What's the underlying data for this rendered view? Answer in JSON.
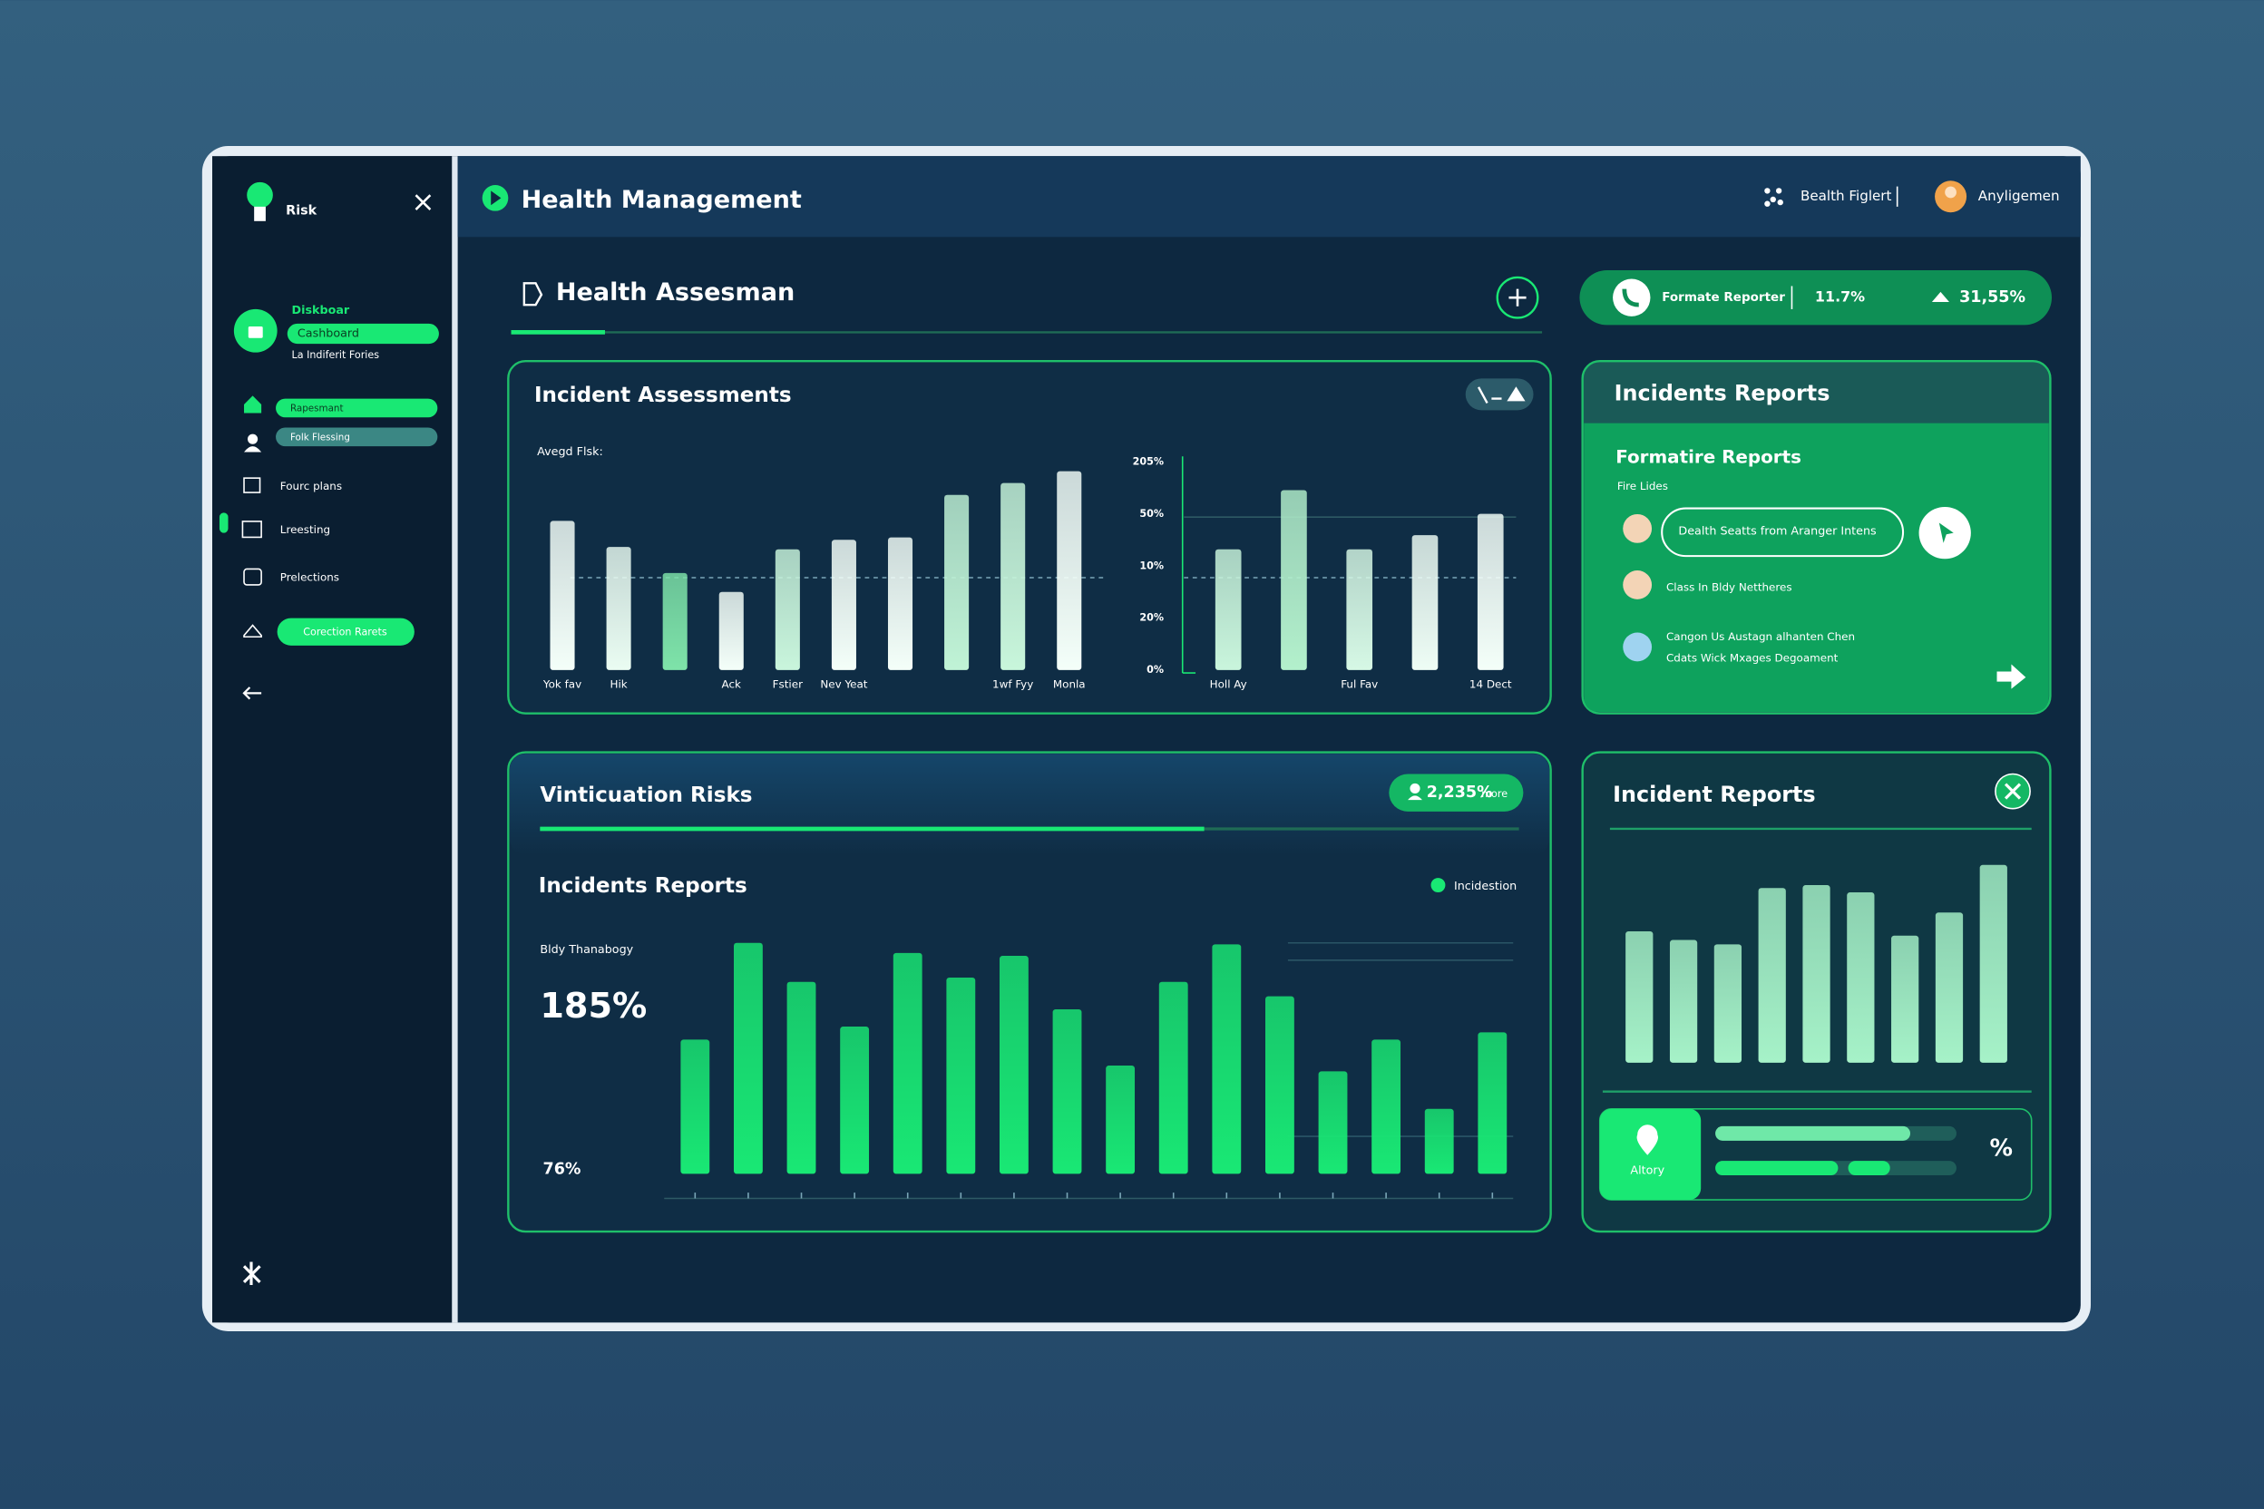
{
  "header": {
    "title": "Health Management",
    "action": "Bealth Figlert",
    "user": "Anyligemen"
  },
  "sidebar": {
    "brand": "Risk",
    "active_title": "Diskboar",
    "active_item": "Cashboard",
    "active_sub": "La Indiferit Fories",
    "items": [
      "Rapesmant",
      "Folk Flessing",
      "Fourc plans",
      "Lreesting",
      "Prelections",
      "Corection Rarets"
    ]
  },
  "section": {
    "title": "Health Assesman"
  },
  "stats": {
    "label": "Formate Reporter",
    "first": "11.7%",
    "second": "31,55%"
  },
  "reports_panel": {
    "title": "Incidents Reports",
    "subtitle": "Formatire Reports",
    "caption": "Fire Lides",
    "button": "Dealth Seatts from Aranger Intens",
    "entry": "Class In Bldy Nettheres",
    "entry_lines": [
      "Cangon Us Austagn alhanten Chen",
      "Cdats Wick Mxages Degoament"
    ]
  },
  "risk_panel": {
    "title": "Vinticuation Risks",
    "badge": "2,235%",
    "badge_unit": "more"
  },
  "summary_card": {
    "label": "Altory",
    "symbol": "%"
  },
  "chart_data": [
    {
      "type": "bar",
      "title": "Incident Assessments",
      "y_label": "Avegd Flsk:",
      "categories": [
        "Yok fav",
        "Hik",
        null,
        "Ack",
        "Fstier",
        "Nev Yeat",
        null,
        null,
        "1wf Fyy",
        "Monla"
      ],
      "values": [
        63,
        52,
        41,
        33,
        51,
        55,
        56,
        74,
        79,
        84
      ],
      "colors": [
        "#f4fff9",
        "#eafcf2",
        "#7ee3a9",
        "#f4fff9",
        "#c9f5dc",
        "#f4fff9",
        "#f4fff9",
        "#c0f3d6",
        "#c8f6db",
        "#f4fff9"
      ],
      "ylim": [
        0,
        100
      ]
    },
    {
      "type": "bar",
      "axis_labels": [
        "205%",
        "50%",
        "10%",
        "20%",
        "0%"
      ],
      "categories": [
        "Holl Ay",
        null,
        "Ful Fav",
        null,
        "14 Dect"
      ],
      "values": [
        51,
        76,
        51,
        57,
        66
      ],
      "colors": [
        "#c9f5dc",
        "#b3f0cc",
        "#d6f8e5",
        "#eefdf5",
        "#f4fff9"
      ],
      "ylim": [
        0,
        100
      ]
    },
    {
      "type": "bar",
      "title": "Incidents Reports",
      "y_label": "Bldy Thanabogy",
      "annotations": [
        "185%",
        "76%"
      ],
      "series": [
        {
          "name": "Incidestion",
          "color": "#19e874",
          "values": [
            93,
            160,
            133,
            102,
            153,
            136,
            151,
            114,
            75,
            133,
            159,
            123,
            71,
            93,
            45,
            98
          ]
        }
      ],
      "ylim": [
        0,
        170
      ]
    },
    {
      "type": "bar",
      "title": "Incident Reports",
      "values": [
        91,
        85,
        82,
        121,
        123,
        118,
        88,
        104,
        137
      ],
      "color": "#a6f2c8",
      "ylim": [
        0,
        150
      ]
    }
  ]
}
